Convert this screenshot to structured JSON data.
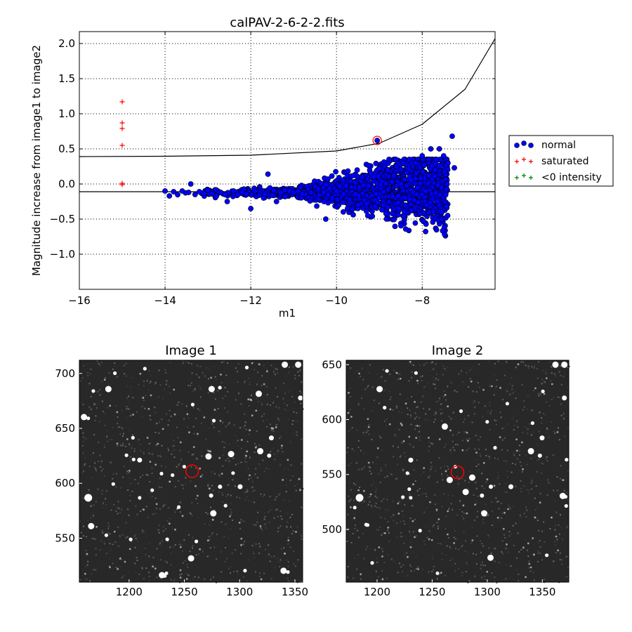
{
  "chart_data": [
    {
      "type": "scatter",
      "title": "calPAV-2-6-2-2.fits",
      "xlabel": "m1",
      "ylabel": "Magnitude increase from image1 to image2",
      "xlim": [
        -16,
        -6.3
      ],
      "ylim": [
        -1.5,
        2.17
      ],
      "xticks": [
        -16,
        -14,
        -12,
        -10,
        -8
      ],
      "xtick_labels": [
        "−16",
        "−14",
        "−12",
        "−10",
        "−8"
      ],
      "yticks": [
        2.0,
        1.5,
        1.0,
        0.5,
        0.0,
        -0.5,
        -1.0
      ],
      "ytick_labels": [
        "2.0",
        "1.5",
        "1.0",
        "0.5",
        "0.0",
        "−0.5",
        "−1.0"
      ],
      "grid": true,
      "legend": {
        "placement": "outside-right",
        "entries": [
          {
            "label": "normal",
            "marker": "circle",
            "color": "#0000ff"
          },
          {
            "label": "saturated",
            "marker": "plus",
            "color": "#ff0000"
          },
          {
            "label": "<0 intensity",
            "marker": "plus",
            "color": "#008000"
          }
        ]
      },
      "series": [
        {
          "name": "normal",
          "color": "#0000ff",
          "points": [
            [
              -14.0,
              -0.1
            ],
            [
              -13.9,
              -0.17
            ],
            [
              -13.8,
              -0.11
            ],
            [
              -13.6,
              -0.1
            ],
            [
              -13.45,
              -0.12
            ],
            [
              -13.4,
              0.0
            ],
            [
              -13.3,
              -0.15
            ],
            [
              -13.2,
              -0.11
            ],
            [
              -13.1,
              -0.13
            ],
            [
              -13.0,
              -0.09
            ],
            [
              -12.9,
              -0.14
            ],
            [
              -12.8,
              -0.17
            ],
            [
              -12.7,
              -0.12
            ],
            [
              -12.6,
              -0.15
            ],
            [
              -12.55,
              -0.25
            ],
            [
              -12.4,
              -0.1
            ],
            [
              -12.3,
              -0.15
            ],
            [
              -12.2,
              -0.12
            ],
            [
              -12.1,
              -0.14
            ],
            [
              -12.0,
              -0.35
            ],
            [
              -11.9,
              -0.1
            ],
            [
              -11.8,
              -0.16
            ],
            [
              -11.7,
              -0.2
            ],
            [
              -11.6,
              0.14
            ],
            [
              -11.5,
              -0.16
            ],
            [
              -11.4,
              -0.25
            ],
            [
              -11.3,
              -0.12
            ],
            [
              -11.2,
              -0.18
            ],
            [
              -11.0,
              -0.12
            ],
            [
              -10.9,
              -0.1
            ],
            [
              -10.8,
              -0.14
            ],
            [
              -10.6,
              -0.12
            ],
            [
              -10.4,
              -0.16
            ],
            [
              -10.3,
              -0.12
            ],
            [
              -10.25,
              -0.5
            ],
            [
              -10.2,
              0.07
            ],
            [
              -10.1,
              -0.2
            ],
            [
              -10.0,
              -0.1
            ],
            [
              -9.95,
              -0.3
            ],
            [
              -9.85,
              0.05
            ],
            [
              -9.7,
              -0.22
            ],
            [
              -9.6,
              0.12
            ],
            [
              -9.5,
              -0.3
            ],
            [
              -9.4,
              0.1
            ],
            [
              -9.3,
              -0.28
            ],
            [
              -9.2,
              0.15
            ],
            [
              -9.1,
              -0.32
            ],
            [
              -9.05,
              0.62
            ],
            [
              -9.0,
              0.22
            ],
            [
              -8.9,
              -0.3
            ],
            [
              -8.8,
              0.2
            ],
            [
              -8.7,
              -0.42
            ],
            [
              -8.6,
              0.25
            ],
            [
              -8.55,
              -0.35
            ],
            [
              -8.45,
              0.3
            ],
            [
              -8.4,
              -0.3
            ],
            [
              -8.3,
              0.35
            ],
            [
              -8.25,
              -0.38
            ],
            [
              -8.15,
              0.3
            ],
            [
              -8.05,
              -0.42
            ],
            [
              -8.0,
              0.4
            ],
            [
              -7.9,
              -0.3
            ],
            [
              -7.85,
              0.35
            ],
            [
              -7.8,
              0.5
            ],
            [
              -7.7,
              0.2
            ],
            [
              -7.6,
              0.5
            ],
            [
              -7.55,
              -0.05
            ],
            [
              -7.5,
              0.4
            ],
            [
              -7.4,
              0.3
            ],
            [
              -7.3,
              0.68
            ],
            [
              -7.25,
              0.23
            ]
          ]
        },
        {
          "name": "saturated",
          "color": "#ff0000",
          "points": [
            [
              -15.0,
              1.17
            ],
            [
              -15.0,
              0.87
            ],
            [
              -15.0,
              0.79
            ],
            [
              -15.0,
              0.55
            ],
            [
              -15.0,
              0.01
            ],
            [
              -15.0,
              -0.01
            ]
          ]
        }
      ],
      "curves": [
        {
          "description_color": "#000000",
          "x": [
            -16,
            -14,
            -12,
            -10,
            -9,
            -8,
            -7,
            -6.3
          ],
          "y": [
            0.39,
            0.395,
            0.41,
            0.47,
            0.58,
            0.85,
            1.35,
            2.07
          ]
        },
        {
          "description_color": "#000000",
          "x": [
            -16,
            -6.3
          ],
          "y": [
            -0.11,
            -0.11
          ]
        }
      ],
      "highlight": {
        "x": -9.05,
        "y": 0.62,
        "color": "#ff0000"
      }
    },
    {
      "type": "image",
      "title": "Image 1",
      "xlim": [
        1155,
        1357
      ],
      "ylim": [
        510,
        712
      ],
      "xtick_labels": [
        "1200",
        "1250",
        "1300",
        "1350"
      ],
      "xticks": [
        1200,
        1250,
        1300,
        1350
      ],
      "ytick_labels": [
        "700",
        "650",
        "600",
        "550"
      ],
      "yticks": [
        700,
        650,
        600,
        550
      ],
      "background": "#282828",
      "marker": {
        "x": 1257,
        "y": 611,
        "color": "#ff0000"
      }
    },
    {
      "type": "image",
      "title": "Image 2",
      "xlim": [
        1172,
        1374
      ],
      "ylim": [
        452,
        654
      ],
      "xtick_labels": [
        "1200",
        "1250",
        "1300",
        "1350"
      ],
      "xticks": [
        1200,
        1250,
        1300,
        1350
      ],
      "ytick_labels": [
        "650",
        "600",
        "550",
        "500"
      ],
      "yticks": [
        650,
        600,
        550,
        500
      ],
      "background": "#282828",
      "marker": {
        "x": 1273,
        "y": 552,
        "color": "#ff0000"
      }
    }
  ]
}
